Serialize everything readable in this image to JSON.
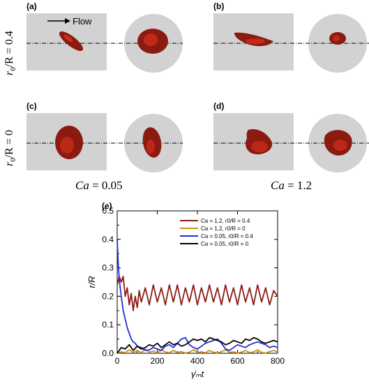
{
  "figure": {
    "panels": [
      {
        "label": "(a)"
      },
      {
        "label": "(b)"
      },
      {
        "label": "(c)"
      },
      {
        "label": "(d)"
      }
    ],
    "flow_label": "Flow",
    "row_labels": {
      "top_var": "r",
      "top_sub": "0",
      "top_rest": "/R = 0.4",
      "bottom_var": "r",
      "bottom_sub": "0",
      "bottom_rest": "/R = 0"
    },
    "column_labels": {
      "left_var": "Ca",
      "left_rest": " = 0.05",
      "right_var": "Ca",
      "right_rest": " = 1.2"
    },
    "colors": {
      "panel_bg": "#d2d2d2",
      "droplet": "#8b1a10",
      "droplet_highlight": "#e8341c"
    }
  },
  "chart_data": {
    "type": "line",
    "panel_label": "(e)",
    "xlabel": "γ̇ₘt",
    "ylabel": "r/R",
    "xlim": [
      0,
      800
    ],
    "ylim": [
      0,
      0.5
    ],
    "xticks": [
      "0",
      "200",
      "400",
      "600",
      "800"
    ],
    "yticks": [
      "0.0",
      "0.1",
      "0.2",
      "0.3",
      "0.4",
      "0.5"
    ],
    "legend_position": "top-right",
    "series": [
      {
        "name": "Ca = 1.2,   r0/R = 0.4",
        "color": "#8b1a10",
        "x": [
          0,
          10,
          20,
          30,
          40,
          50,
          60,
          70,
          80,
          90,
          100,
          110,
          120,
          140,
          160,
          180,
          200,
          220,
          240,
          260,
          280,
          300,
          320,
          340,
          360,
          380,
          400,
          420,
          440,
          460,
          480,
          500,
          520,
          540,
          560,
          580,
          600,
          620,
          640,
          660,
          680,
          700,
          720,
          740,
          760,
          780,
          800
        ],
        "y": [
          0.24,
          0.27,
          0.25,
          0.27,
          0.2,
          0.23,
          0.17,
          0.21,
          0.15,
          0.2,
          0.16,
          0.22,
          0.18,
          0.23,
          0.17,
          0.24,
          0.18,
          0.23,
          0.17,
          0.24,
          0.18,
          0.24,
          0.17,
          0.23,
          0.18,
          0.24,
          0.17,
          0.23,
          0.18,
          0.24,
          0.18,
          0.23,
          0.17,
          0.24,
          0.18,
          0.23,
          0.17,
          0.24,
          0.18,
          0.23,
          0.17,
          0.24,
          0.18,
          0.23,
          0.17,
          0.22,
          0.2
        ]
      },
      {
        "name": "Ca = 1.2,   r0/R = 0",
        "color": "#c8901e",
        "x": [
          0,
          20,
          40,
          60,
          80,
          100,
          120,
          140,
          160,
          180,
          200,
          220,
          240,
          260,
          280,
          300,
          320,
          340,
          360,
          380,
          400,
          420,
          440,
          460,
          480,
          500,
          520,
          540,
          560,
          580,
          600,
          620,
          640,
          660,
          680,
          700,
          720,
          740,
          760,
          780,
          800
        ],
        "y": [
          0.0,
          0.005,
          0.002,
          0.012,
          0.003,
          0.01,
          0.002,
          0.015,
          0.004,
          0.008,
          0.001,
          0.012,
          0.005,
          0.002,
          0.01,
          0.003,
          0.006,
          0.001,
          0.004,
          0.012,
          0.003,
          0.005,
          0.002,
          0.01,
          0.004,
          0.001,
          0.006,
          0.012,
          0.003,
          0.005,
          0.001,
          0.004,
          0.01,
          0.002,
          0.005,
          0.012,
          0.003,
          0.001,
          0.006,
          0.01,
          0.004
        ]
      },
      {
        "name": "Ca = 0.05, r0/R = 0.4",
        "color": "#1f2fd6",
        "x": [
          0,
          5,
          10,
          20,
          30,
          40,
          50,
          60,
          70,
          80,
          90,
          100,
          120,
          140,
          160,
          180,
          200,
          220,
          240,
          260,
          280,
          300,
          320,
          340,
          360,
          380,
          400,
          420,
          440,
          460,
          480,
          500,
          520,
          540,
          560,
          580,
          600,
          620,
          640,
          660,
          680,
          700,
          720,
          740,
          760,
          780,
          800
        ],
        "y": [
          0.4,
          0.32,
          0.26,
          0.2,
          0.15,
          0.12,
          0.09,
          0.07,
          0.05,
          0.04,
          0.035,
          0.025,
          0.02,
          0.01,
          0.012,
          0.02,
          0.015,
          0.01,
          0.025,
          0.03,
          0.02,
          0.035,
          0.05,
          0.055,
          0.03,
          0.02,
          0.015,
          0.025,
          0.035,
          0.04,
          0.045,
          0.05,
          0.035,
          0.015,
          0.01,
          0.02,
          0.03,
          0.025,
          0.02,
          0.03,
          0.035,
          0.04,
          0.035,
          0.03,
          0.02,
          0.025,
          0.02
        ]
      },
      {
        "name": "Ca = 0.05, r0/R = 0",
        "color": "#000000",
        "x": [
          0,
          20,
          40,
          60,
          80,
          100,
          120,
          140,
          160,
          180,
          200,
          220,
          240,
          260,
          280,
          300,
          320,
          340,
          360,
          380,
          400,
          420,
          440,
          460,
          480,
          500,
          520,
          540,
          560,
          580,
          600,
          620,
          640,
          660,
          680,
          700,
          720,
          740,
          760,
          780,
          800
        ],
        "y": [
          0.0,
          0.02,
          0.015,
          0.03,
          0.01,
          0.025,
          0.015,
          0.02,
          0.03,
          0.025,
          0.035,
          0.02,
          0.03,
          0.04,
          0.03,
          0.035,
          0.025,
          0.03,
          0.04,
          0.05,
          0.045,
          0.05,
          0.04,
          0.055,
          0.05,
          0.045,
          0.04,
          0.03,
          0.035,
          0.045,
          0.04,
          0.035,
          0.05,
          0.045,
          0.055,
          0.05,
          0.04,
          0.035,
          0.04,
          0.045,
          0.04
        ]
      }
    ]
  }
}
